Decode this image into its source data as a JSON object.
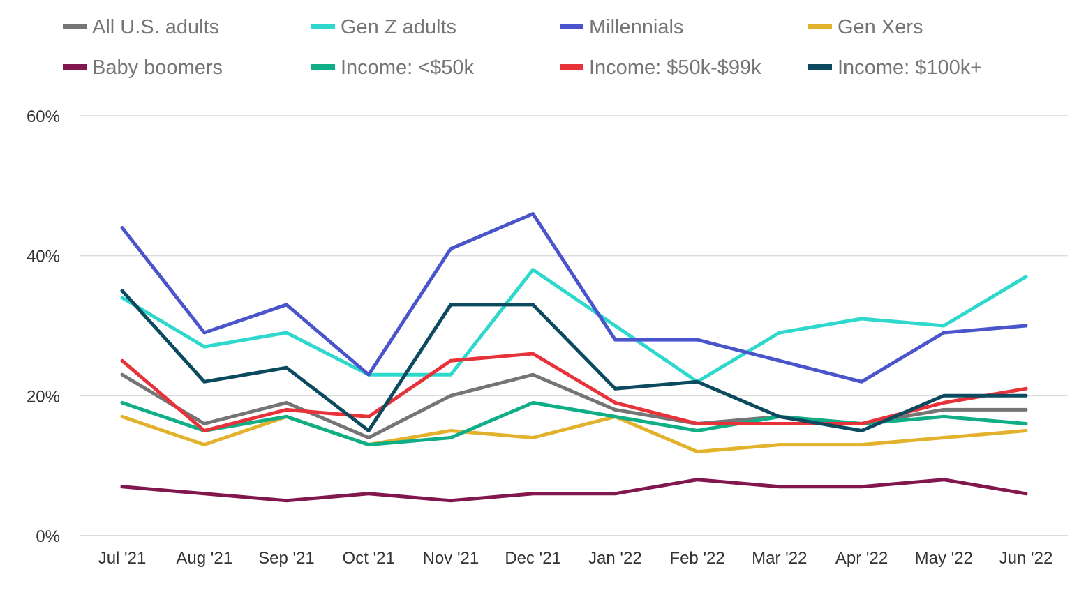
{
  "chart_data": {
    "type": "line",
    "title": "",
    "xlabel": "",
    "ylabel": "",
    "ylim": [
      0,
      60
    ],
    "yticks": [
      {
        "value": 0,
        "label": "0%"
      },
      {
        "value": 20,
        "label": "20%"
      },
      {
        "value": 40,
        "label": "40%"
      },
      {
        "value": 60,
        "label": "60%"
      }
    ],
    "grid": true,
    "legend_position": "top",
    "categories": [
      "Jul '21",
      "Aug '21",
      "Sep '21",
      "Oct '21",
      "Nov '21",
      "Dec '21",
      "Jan '22",
      "Feb '22",
      "Mar '22",
      "Apr '22",
      "May '22",
      "Jun '22"
    ],
    "series": [
      {
        "name": "All U.S. adults",
        "color": "#757575",
        "values": [
          23,
          16,
          19,
          14,
          20,
          23,
          18,
          16,
          17,
          16,
          18,
          18
        ]
      },
      {
        "name": "Gen Z adults",
        "color": "#2ed8cc",
        "values": [
          34,
          27,
          29,
          23,
          23,
          38,
          30,
          22,
          29,
          31,
          30,
          37
        ]
      },
      {
        "name": "Millennials",
        "color": "#4a55cc",
        "values": [
          44,
          29,
          33,
          23,
          41,
          46,
          28,
          28,
          25,
          22,
          29,
          30
        ]
      },
      {
        "name": "Gen Xers",
        "color": "#e3b22d",
        "values": [
          17,
          13,
          17,
          13,
          15,
          14,
          17,
          12,
          13,
          13,
          14,
          15
        ]
      },
      {
        "name": "Baby boomers",
        "color": "#82174f",
        "values": [
          7,
          6,
          5,
          6,
          5,
          6,
          6,
          8,
          7,
          7,
          8,
          6
        ]
      },
      {
        "name": "Income: <$50k",
        "color": "#0fae86",
        "values": [
          19,
          15,
          17,
          13,
          14,
          19,
          17,
          15,
          17,
          16,
          17,
          16
        ]
      },
      {
        "name": "Income: $50k-$99k",
        "color": "#e8323a",
        "values": [
          25,
          15,
          18,
          17,
          25,
          26,
          19,
          16,
          16,
          16,
          19,
          21
        ]
      },
      {
        "name": "Income: $100k+",
        "color": "#0c4a60",
        "values": [
          35,
          22,
          24,
          15,
          33,
          33,
          21,
          22,
          17,
          15,
          20,
          20
        ]
      }
    ]
  }
}
